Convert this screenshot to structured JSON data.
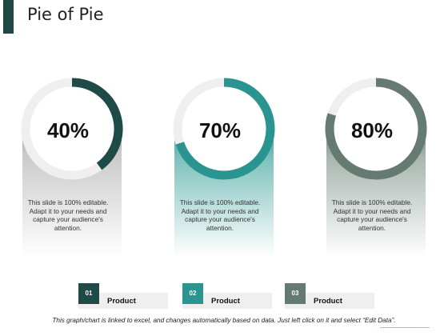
{
  "title": "Pie of Pie",
  "chart_data": [
    {
      "type": "pie",
      "values": [
        40,
        60
      ],
      "label": "40%",
      "description": "This slide is 100% editable. Adapt it to your needs and capture your audience's attention.",
      "color": "#1e4a48"
    },
    {
      "type": "pie",
      "values": [
        70,
        30
      ],
      "label": "70%",
      "description": "This slide is 100% editable. Adapt it to your needs and capture your audience's attention.",
      "color": "#2a9590"
    },
    {
      "type": "pie",
      "values": [
        80,
        20
      ],
      "label": "80%",
      "description": "This slide is 100% editable. Adapt it to your needs and capture your audience's attention.",
      "color": "#657a71"
    }
  ],
  "legend": [
    {
      "number": "01",
      "label": "Product",
      "color": "#1e4a48"
    },
    {
      "number": "02",
      "label": "Product",
      "color": "#2a9590"
    },
    {
      "number": "03",
      "label": "Product",
      "color": "#657a71"
    }
  ],
  "footer": "This graph/chart is linked to excel, and changes automatically based on data.  Just left click on it and select “Edit Data”.",
  "colors": {
    "ring_track": "#efefef",
    "title_accent": "#1d4846"
  }
}
